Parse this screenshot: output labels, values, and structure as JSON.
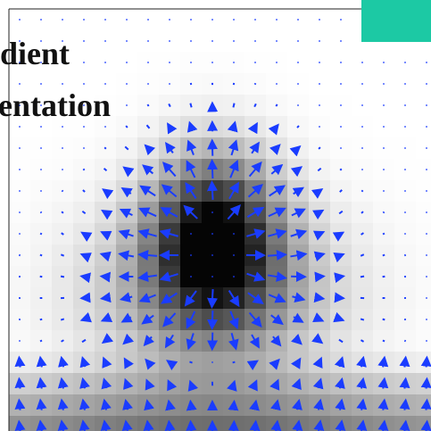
{
  "slide": {
    "title_lines": [
      "dient",
      "entation"
    ]
  }
}
